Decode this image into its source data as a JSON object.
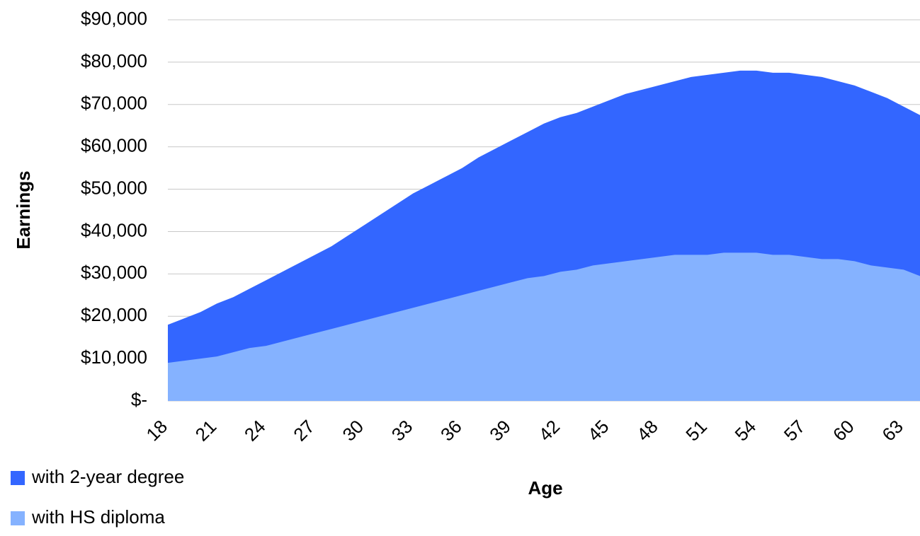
{
  "chart_data": {
    "type": "area",
    "x_label": "Age",
    "y_label": "Earnings",
    "x": [
      18,
      19,
      20,
      21,
      22,
      23,
      24,
      25,
      26,
      27,
      28,
      29,
      30,
      31,
      32,
      33,
      34,
      35,
      36,
      37,
      38,
      39,
      40,
      41,
      42,
      43,
      44,
      45,
      46,
      47,
      48,
      49,
      50,
      51,
      52,
      53,
      54,
      55,
      56,
      57,
      58,
      59,
      60,
      61,
      62,
      63,
      64
    ],
    "series": [
      {
        "name": "with 2-year degree",
        "color": "#3366ff",
        "values": [
          18000,
          19500,
          21000,
          23000,
          24500,
          26500,
          28500,
          30500,
          32500,
          34500,
          36500,
          39000,
          41500,
          44000,
          46500,
          49000,
          51000,
          53000,
          55000,
          57500,
          59500,
          61500,
          63500,
          65500,
          67000,
          68000,
          69500,
          71000,
          72500,
          73500,
          74500,
          75500,
          76500,
          77000,
          77500,
          78000,
          78000,
          77500,
          77500,
          77000,
          76500,
          75500,
          74500,
          73000,
          71500,
          69500,
          67500
        ]
      },
      {
        "name": "with HS diploma",
        "color": "#85b2ff",
        "values": [
          9000,
          9500,
          10000,
          10500,
          11500,
          12500,
          13000,
          14000,
          15000,
          16000,
          17000,
          18000,
          19000,
          20000,
          21000,
          22000,
          23000,
          24000,
          25000,
          26000,
          27000,
          28000,
          29000,
          29500,
          30500,
          31000,
          32000,
          32500,
          33000,
          33500,
          34000,
          34500,
          34500,
          34500,
          35000,
          35000,
          35000,
          34500,
          34500,
          34000,
          33500,
          33500,
          33000,
          32000,
          31500,
          31000,
          29500
        ]
      }
    ],
    "xlim": [
      18,
      64
    ],
    "xticks": [
      18,
      21,
      24,
      27,
      30,
      33,
      36,
      39,
      42,
      45,
      48,
      51,
      54,
      57,
      60,
      63
    ],
    "ylim": [
      0,
      90000
    ],
    "yticks": [
      {
        "value": 0,
        "label": "$-"
      },
      {
        "value": 10000,
        "label": "$10,000"
      },
      {
        "value": 20000,
        "label": "$20,000"
      },
      {
        "value": 30000,
        "label": "$30,000"
      },
      {
        "value": 40000,
        "label": "$40,000"
      },
      {
        "value": 50000,
        "label": "$50,000"
      },
      {
        "value": 60000,
        "label": "$60,000"
      },
      {
        "value": 70000,
        "label": "$70,000"
      },
      {
        "value": 80000,
        "label": "$80,000"
      },
      {
        "value": 90000,
        "label": "$90,000"
      }
    ],
    "grid": true,
    "legend": "bottom-left"
  }
}
